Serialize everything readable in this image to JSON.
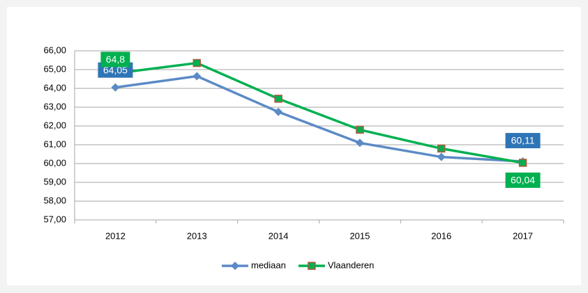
{
  "chart_data": {
    "type": "line",
    "categories": [
      "2012",
      "2013",
      "2014",
      "2015",
      "2016",
      "2017"
    ],
    "series": [
      {
        "name": "mediaan",
        "color": "#5b8ac6",
        "values": [
          64.05,
          64.65,
          62.75,
          61.1,
          60.35,
          60.11
        ],
        "value_labels": [
          "64,05",
          null,
          null,
          null,
          null,
          "60,11"
        ],
        "label_color": "#2e75b6"
      },
      {
        "name": "Vlaanderen",
        "color": "#00b050",
        "values": [
          64.8,
          65.35,
          63.45,
          61.8,
          60.8,
          60.04
        ],
        "value_labels": [
          "64,8",
          null,
          null,
          null,
          null,
          "60,04"
        ],
        "label_color": "#00b050"
      }
    ],
    "ylim": [
      57,
      66
    ],
    "yticks": [
      {
        "value": 57,
        "label": "57,00"
      },
      {
        "value": 58,
        "label": "58,00"
      },
      {
        "value": 59,
        "label": "59,00"
      },
      {
        "value": 60,
        "label": "60,00"
      },
      {
        "value": 61,
        "label": "61,00"
      },
      {
        "value": 62,
        "label": "62,00"
      },
      {
        "value": 63,
        "label": "63,00"
      },
      {
        "value": 64,
        "label": "64,00"
      },
      {
        "value": 65,
        "label": "65,00"
      },
      {
        "value": 66,
        "label": "66,00"
      }
    ],
    "grid": true,
    "legend": "bottom"
  }
}
